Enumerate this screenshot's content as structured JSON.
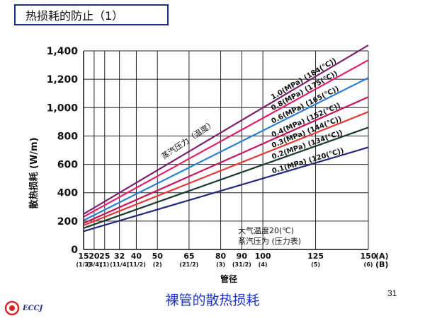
{
  "slide": {
    "title": "热损耗的防止（1）",
    "caption": "裸管的散热损耗",
    "page_number": "31",
    "logo_text": "ECCJ"
  },
  "chart_data": {
    "type": "line",
    "ylabel": "散热损耗 (W/m)",
    "xlabel": "管径",
    "ylim": [
      0,
      1400
    ],
    "xlim": [
      15,
      150
    ],
    "grid": true,
    "y_ticks": [
      0,
      200,
      400,
      600,
      800,
      "1,000",
      "1,200",
      "1,400"
    ],
    "y_tick_values": [
      0,
      200,
      400,
      600,
      800,
      1000,
      1200,
      1400
    ],
    "x_ticks": [
      {
        "x": 15,
        "label": "15",
        "sub": "(1/2)"
      },
      {
        "x": 20,
        "label": "20",
        "sub": "(3/4)"
      },
      {
        "x": 25,
        "label": "25",
        "sub": "(1)"
      },
      {
        "x": 32,
        "label": "32",
        "sub": "(11/4)"
      },
      {
        "x": 40,
        "label": "40",
        "sub": "(11/2)"
      },
      {
        "x": 50,
        "label": "50",
        "sub": "(2)"
      },
      {
        "x": 65,
        "label": "65",
        "sub": "(21/2)"
      },
      {
        "x": 80,
        "label": "80",
        "sub": "(3)"
      },
      {
        "x": 90,
        "label": "90",
        "sub": "(31/2)"
      },
      {
        "x": 100,
        "label": "100",
        "sub": "(4)"
      },
      {
        "x": 125,
        "label": "125",
        "sub": "(5)"
      },
      {
        "x": 150,
        "label": "150",
        "sub": "(6)"
      }
    ],
    "x_unit_labels": [
      "(A)",
      "(B)"
    ],
    "series_group_label": "蒸汽压力（温度）",
    "series": [
      {
        "name": "1.0(MPa) (184(℃))",
        "color": "#7a1f6e",
        "x": [
          15,
          150
        ],
        "values": [
          250,
          1440
        ]
      },
      {
        "name": "0.8(MPa) (175(℃))",
        "color": "#e0206a",
        "x": [
          15,
          150
        ],
        "values": [
          230,
          1335
        ]
      },
      {
        "name": "0.6(MPa) (165(℃))",
        "color": "#2a7fd4",
        "x": [
          15,
          150
        ],
        "values": [
          205,
          1210
        ]
      },
      {
        "name": "0.4(MPa) (152(℃))",
        "color": "#c2185b",
        "x": [
          15,
          150
        ],
        "values": [
          185,
          1075
        ]
      },
      {
        "name": "0.3(MPa) (144(℃))",
        "color": "#e53935",
        "x": [
          15,
          150
        ],
        "values": [
          170,
          970
        ]
      },
      {
        "name": "0.2(MPa) (134(℃))",
        "color": "#1b3a2a",
        "x": [
          15,
          150
        ],
        "values": [
          150,
          860
        ]
      },
      {
        "name": "0.1(MPa) (120(℃))",
        "color": "#1f2a7a",
        "x": [
          15,
          150
        ],
        "values": [
          128,
          720
        ]
      }
    ],
    "annotations": [
      "大气温度20(℃)",
      "蒸汽压为  (压力表)"
    ]
  }
}
